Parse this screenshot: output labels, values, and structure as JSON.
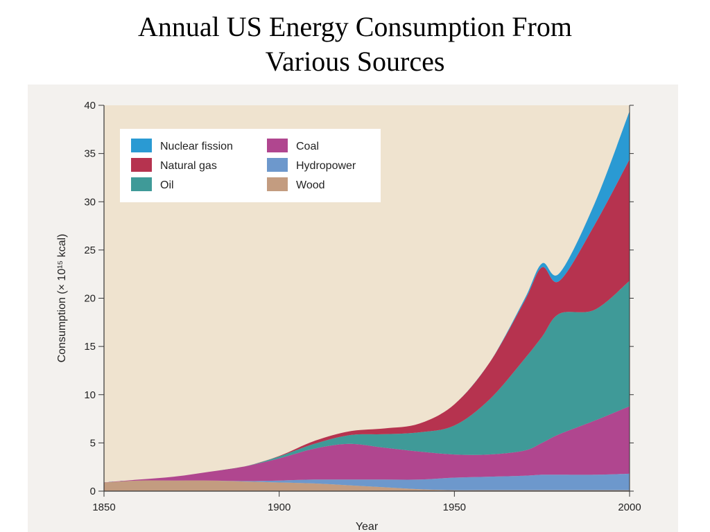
{
  "title": {
    "line1": "Annual US Energy Consumption From",
    "line2": "Various Sources"
  },
  "chart_data": {
    "type": "area",
    "stacked": true,
    "xlabel": "Year",
    "ylabel": "Consumption (× 10¹⁵ kcal)",
    "xlim": [
      1850,
      2000
    ],
    "ylim": [
      0,
      40
    ],
    "x_ticks": [
      1850,
      1900,
      1950,
      2000
    ],
    "y_ticks": [
      0,
      5,
      10,
      15,
      20,
      25,
      30,
      35,
      40
    ],
    "grid": false,
    "legend_position": "top-left",
    "x": [
      1850,
      1860,
      1870,
      1880,
      1890,
      1900,
      1910,
      1920,
      1930,
      1940,
      1950,
      1960,
      1970,
      1975,
      1980,
      1990,
      2000
    ],
    "series": [
      {
        "name": "Wood",
        "color": "#c39c80",
        "values": [
          0.9,
          1.1,
          1.1,
          1.1,
          1.0,
          0.9,
          0.8,
          0.6,
          0.4,
          0.2,
          0.1,
          0.1,
          0.1,
          0.1,
          0.1,
          0.1,
          0.1
        ]
      },
      {
        "name": "Hydropower",
        "color": "#6d98cc",
        "values": [
          0,
          0,
          0,
          0,
          0.05,
          0.2,
          0.4,
          0.6,
          0.8,
          1.0,
          1.3,
          1.4,
          1.5,
          1.6,
          1.6,
          1.6,
          1.7
        ]
      },
      {
        "name": "Coal",
        "color": "#b0468f",
        "values": [
          0,
          0.1,
          0.4,
          0.9,
          1.5,
          2.3,
          3.2,
          3.7,
          3.3,
          2.9,
          2.4,
          2.3,
          2.6,
          3.3,
          4.2,
          5.6,
          7.0
        ]
      },
      {
        "name": "Oil",
        "color": "#3f9a98",
        "values": [
          0,
          0,
          0,
          0,
          0,
          0.2,
          0.5,
          0.9,
          1.4,
          2.0,
          3.0,
          5.7,
          9.5,
          11.0,
          12.5,
          11.5,
          13.0
        ]
      },
      {
        "name": "Natural gas",
        "color": "#b6334f",
        "values": [
          0,
          0,
          0,
          0,
          0,
          0.05,
          0.3,
          0.4,
          0.6,
          0.9,
          2.2,
          3.8,
          6.0,
          7.2,
          3.4,
          8.8,
          12.6
        ]
      },
      {
        "name": "Nuclear fission",
        "color": "#2a9ad3",
        "values": [
          0,
          0,
          0,
          0,
          0,
          0,
          0,
          0,
          0,
          0,
          0,
          0,
          0.2,
          0.4,
          0.8,
          2.2,
          5.0
        ]
      }
    ],
    "legend_layout": [
      [
        "Nuclear fission",
        "Coal"
      ],
      [
        "Natural gas",
        "Hydropower"
      ],
      [
        "Oil",
        "Wood"
      ]
    ]
  },
  "colors": {
    "plot_background": "#efe3cf",
    "scan_background": "#f3f1ee",
    "axis": "#333333"
  }
}
